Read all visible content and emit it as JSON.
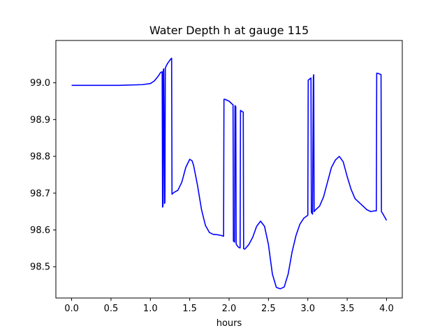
{
  "chart_data": {
    "type": "line",
    "title": "Water Depth h at gauge 115",
    "xlabel": "hours",
    "ylabel": "",
    "xlim": [
      -0.2,
      4.2
    ],
    "ylim": [
      98.415,
      99.115
    ],
    "x_ticks": [
      0.0,
      0.5,
      1.0,
      1.5,
      2.0,
      2.5,
      3.0,
      3.5,
      4.0
    ],
    "x_tick_labels": [
      "0.0",
      "0.5",
      "1.0",
      "1.5",
      "2.0",
      "2.5",
      "3.0",
      "3.5",
      "4.0"
    ],
    "y_ticks": [
      98.5,
      98.6,
      98.7,
      98.8,
      98.9,
      99.0
    ],
    "y_tick_labels": [
      "98.5",
      "98.6",
      "98.7",
      "98.8",
      "98.9",
      "99.0"
    ],
    "grid": false,
    "series": [
      {
        "color": "#0000ff",
        "x": [
          0.0,
          0.3,
          0.6,
          0.9,
          1.0,
          1.05,
          1.1,
          1.13,
          1.15,
          1.155,
          1.16,
          1.165,
          1.17,
          1.18,
          1.185,
          1.19,
          1.2,
          1.22,
          1.25,
          1.27,
          1.275,
          1.3,
          1.35,
          1.4,
          1.45,
          1.5,
          1.53,
          1.55,
          1.6,
          1.65,
          1.7,
          1.75,
          1.8,
          1.85,
          1.9,
          1.93,
          1.935,
          1.95,
          2.0,
          2.05,
          2.055,
          2.07,
          2.075,
          2.085,
          2.09,
          2.1,
          2.12,
          2.14,
          2.145,
          2.18,
          2.185,
          2.2,
          2.25,
          2.3,
          2.35,
          2.4,
          2.45,
          2.5,
          2.55,
          2.6,
          2.65,
          2.7,
          2.75,
          2.8,
          2.85,
          2.9,
          2.95,
          3.0,
          3.005,
          3.04,
          3.045,
          3.06,
          3.07,
          3.075,
          3.08,
          3.1,
          3.15,
          3.2,
          3.25,
          3.3,
          3.35,
          3.4,
          3.45,
          3.5,
          3.55,
          3.6,
          3.65,
          3.7,
          3.75,
          3.8,
          3.85,
          3.87,
          3.875,
          3.9,
          3.93,
          3.935,
          3.95,
          4.0
        ],
        "y": [
          98.993,
          98.993,
          98.993,
          98.995,
          98.998,
          99.005,
          99.018,
          99.028,
          99.03,
          98.662,
          98.665,
          99.035,
          99.038,
          98.672,
          98.675,
          99.04,
          99.045,
          99.053,
          99.062,
          99.067,
          98.697,
          98.702,
          98.708,
          98.73,
          98.77,
          98.792,
          98.788,
          98.775,
          98.72,
          98.655,
          98.612,
          98.593,
          98.588,
          98.587,
          98.585,
          98.583,
          98.955,
          98.955,
          98.95,
          98.94,
          98.57,
          98.567,
          98.938,
          98.935,
          98.562,
          98.558,
          98.553,
          98.551,
          98.925,
          98.92,
          98.549,
          98.548,
          98.56,
          98.58,
          98.61,
          98.624,
          98.61,
          98.56,
          98.48,
          98.444,
          98.44,
          98.445,
          98.48,
          98.54,
          98.585,
          98.616,
          98.632,
          98.64,
          99.007,
          99.013,
          98.648,
          98.643,
          99.016,
          99.022,
          98.65,
          98.655,
          98.665,
          98.69,
          98.73,
          98.77,
          98.79,
          98.8,
          98.785,
          98.745,
          98.71,
          98.685,
          98.675,
          98.665,
          98.655,
          98.65,
          98.652,
          98.652,
          99.026,
          99.025,
          99.022,
          98.65,
          98.645,
          98.626
        ]
      }
    ]
  }
}
